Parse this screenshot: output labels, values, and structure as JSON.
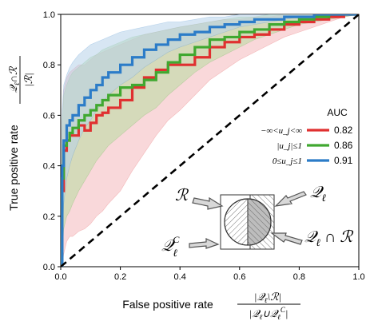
{
  "chart_data": {
    "type": "line",
    "x": [
      0,
      0.005,
      0.01,
      0.02,
      0.03,
      0.04,
      0.06,
      0.08,
      0.1,
      0.12,
      0.14,
      0.16,
      0.2,
      0.24,
      0.28,
      0.32,
      0.36,
      0.4,
      0.45,
      0.5,
      0.55,
      0.6,
      0.65,
      0.7,
      0.75,
      0.8,
      0.85,
      0.9,
      0.95,
      1.0
    ],
    "series": [
      {
        "name": "−∞<u_j<∞",
        "auc": "0.82",
        "color": "#e03030",
        "band_color": "#f4b8bc",
        "values": [
          0,
          0.3,
          0.46,
          0.5,
          0.52,
          0.52,
          0.56,
          0.54,
          0.57,
          0.6,
          0.61,
          0.63,
          0.66,
          0.71,
          0.75,
          0.78,
          0.8,
          0.8,
          0.83,
          0.87,
          0.89,
          0.91,
          0.92,
          0.94,
          0.96,
          0.97,
          0.98,
          0.99,
          1.0,
          1.0
        ],
        "lower": [
          0,
          0.0,
          0.05,
          0.1,
          0.12,
          0.12,
          0.14,
          0.15,
          0.17,
          0.2,
          0.22,
          0.25,
          0.3,
          0.38,
          0.45,
          0.52,
          0.58,
          0.62,
          0.68,
          0.74,
          0.78,
          0.82,
          0.85,
          0.88,
          0.91,
          0.93,
          0.95,
          0.97,
          0.99,
          1.0
        ],
        "upper": [
          0,
          0.55,
          0.7,
          0.75,
          0.77,
          0.78,
          0.8,
          0.8,
          0.82,
          0.84,
          0.85,
          0.86,
          0.88,
          0.9,
          0.92,
          0.93,
          0.94,
          0.95,
          0.96,
          0.97,
          0.98,
          0.98,
          0.99,
          0.99,
          1.0,
          1.0,
          1.0,
          1.0,
          1.0,
          1.0
        ]
      },
      {
        "name": "|u_j|≤1",
        "auc": "0.86",
        "color": "#40a830",
        "band_color": "#b8dca0",
        "values": [
          0,
          0.35,
          0.48,
          0.5,
          0.53,
          0.55,
          0.58,
          0.6,
          0.62,
          0.64,
          0.66,
          0.68,
          0.71,
          0.72,
          0.74,
          0.77,
          0.81,
          0.84,
          0.87,
          0.9,
          0.91,
          0.93,
          0.94,
          0.96,
          0.97,
          0.98,
          0.99,
          1.0,
          1.0,
          1.0
        ],
        "lower": [
          0,
          0.05,
          0.15,
          0.2,
          0.22,
          0.25,
          0.3,
          0.34,
          0.38,
          0.42,
          0.45,
          0.48,
          0.52,
          0.56,
          0.6,
          0.63,
          0.68,
          0.72,
          0.77,
          0.81,
          0.84,
          0.87,
          0.9,
          0.92,
          0.94,
          0.96,
          0.97,
          0.98,
          0.99,
          1.0
        ],
        "upper": [
          0,
          0.58,
          0.68,
          0.72,
          0.75,
          0.77,
          0.79,
          0.81,
          0.83,
          0.84,
          0.86,
          0.87,
          0.89,
          0.91,
          0.92,
          0.93,
          0.94,
          0.95,
          0.96,
          0.97,
          0.98,
          0.99,
          0.99,
          1.0,
          1.0,
          1.0,
          1.0,
          1.0,
          1.0,
          1.0
        ]
      },
      {
        "name": "0≤u_j≤1",
        "auc": "0.91",
        "color": "#2c7cc8",
        "band_color": "#b6d2ea",
        "values": [
          0,
          0.4,
          0.5,
          0.56,
          0.58,
          0.6,
          0.64,
          0.67,
          0.7,
          0.72,
          0.75,
          0.77,
          0.8,
          0.83,
          0.86,
          0.88,
          0.9,
          0.92,
          0.93,
          0.95,
          0.96,
          0.97,
          0.98,
          0.98,
          0.99,
          0.99,
          1.0,
          1.0,
          1.0,
          1.0
        ],
        "lower": [
          0,
          0.1,
          0.25,
          0.35,
          0.4,
          0.44,
          0.5,
          0.55,
          0.58,
          0.62,
          0.65,
          0.68,
          0.72,
          0.75,
          0.79,
          0.82,
          0.85,
          0.87,
          0.89,
          0.91,
          0.93,
          0.95,
          0.96,
          0.97,
          0.98,
          0.99,
          0.99,
          1.0,
          1.0,
          1.0
        ],
        "upper": [
          0,
          0.62,
          0.72,
          0.76,
          0.79,
          0.81,
          0.84,
          0.86,
          0.88,
          0.89,
          0.9,
          0.91,
          0.93,
          0.94,
          0.95,
          0.96,
          0.97,
          0.97,
          0.98,
          0.99,
          0.99,
          1.0,
          1.0,
          1.0,
          1.0,
          1.0,
          1.0,
          1.0,
          1.0,
          1.0
        ]
      }
    ],
    "diagonal": [
      [
        0,
        0
      ],
      [
        1,
        1
      ]
    ],
    "xlabel": "False positive rate",
    "ylabel": "True positive rate",
    "xlabel_formula": "|Q_ℓ \\ R| / |Q_ℓ ∪ Q_ℓ^C|",
    "ylabel_formula": "|Q_ℓ ∩ R| / |R|",
    "xlim": [
      0,
      1
    ],
    "ylim": [
      0,
      1
    ],
    "xticks": [
      "0.0",
      "0.2",
      "0.4",
      "0.6",
      "0.8",
      "1.0"
    ],
    "yticks": [
      "0.0",
      "0.2",
      "0.4",
      "0.6",
      "0.8",
      "1.0"
    ],
    "legend_title": "AUC",
    "legend_position": "right",
    "grid": false,
    "inset": {
      "labels": {
        "r": "R",
        "q": "Q_ℓ",
        "qc": "Q_ℓ^C",
        "intersection": "Q_ℓ ∩ R"
      }
    }
  }
}
